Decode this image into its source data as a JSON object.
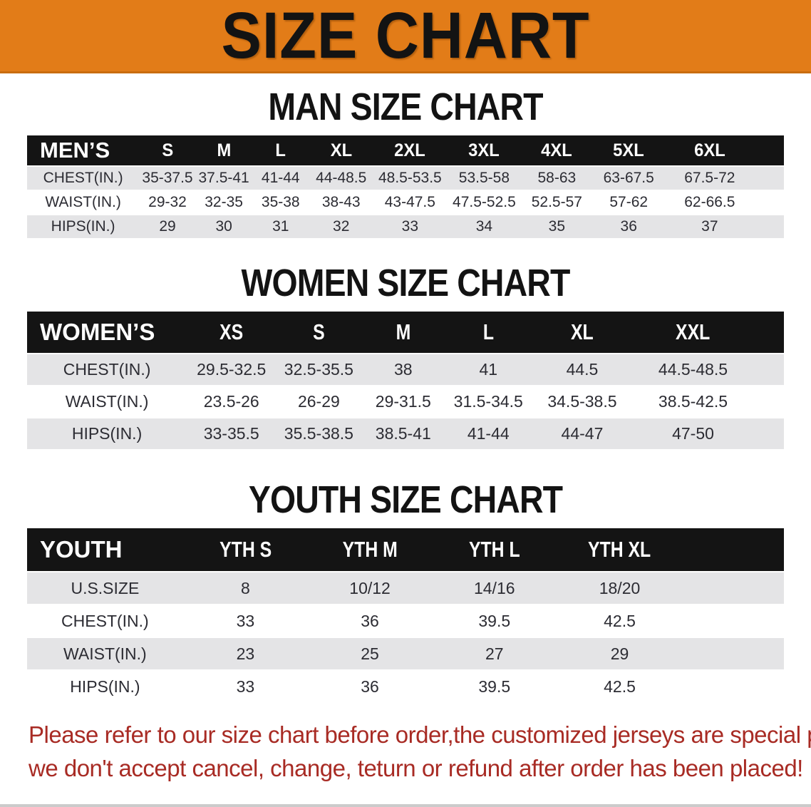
{
  "banner": {
    "title": "SIZE CHART"
  },
  "sections": {
    "men": {
      "title": "MAN SIZE CHART"
    },
    "women": {
      "title": "WOMEN SIZE CHART"
    },
    "youth": {
      "title": "YOUTH SIZE CHART"
    }
  },
  "tables": {
    "men": {
      "label": "MEN’S",
      "columns": [
        "S",
        "M",
        "L",
        "XL",
        "2XL",
        "3XL",
        "4XL",
        "5XL",
        "6XL"
      ],
      "rows": [
        {
          "label": "CHEST(IN.)",
          "values": [
            "35-37.5",
            "37.5-41",
            "41-44",
            "44-48.5",
            "48.5-53.5",
            "53.5-58",
            "58-63",
            "63-67.5",
            "67.5-72"
          ]
        },
        {
          "label": "WAIST(IN.)",
          "values": [
            "29-32",
            "32-35",
            "35-38",
            "38-43",
            "43-47.5",
            "47.5-52.5",
            "52.5-57",
            "57-62",
            "62-66.5"
          ]
        },
        {
          "label": "HIPS(IN.)",
          "values": [
            "29",
            "30",
            "31",
            "32",
            "33",
            "34",
            "35",
            "36",
            "37"
          ]
        }
      ]
    },
    "women": {
      "label": "WOMEN’S",
      "columns": [
        "XS",
        "S",
        "M",
        "L",
        "XL",
        "XXL"
      ],
      "rows": [
        {
          "label": "CHEST(IN.)",
          "values": [
            "29.5-32.5",
            "32.5-35.5",
            "38",
            "41",
            "44.5",
            "44.5-48.5"
          ]
        },
        {
          "label": "WAIST(IN.)",
          "values": [
            "23.5-26",
            "26-29",
            "29-31.5",
            "31.5-34.5",
            "34.5-38.5",
            "38.5-42.5"
          ]
        },
        {
          "label": "HIPS(IN.)",
          "values": [
            "33-35.5",
            "35.5-38.5",
            "38.5-41",
            "41-44",
            "44-47",
            "47-50"
          ]
        }
      ]
    },
    "youth": {
      "label": "YOUTH",
      "columns": [
        "YTH S",
        "YTH M",
        "YTH L",
        "YTH XL"
      ],
      "rows": [
        {
          "label": "U.S.SIZE",
          "values": [
            "8",
            "10/12",
            "14/16",
            "18/20"
          ]
        },
        {
          "label": "CHEST(IN.)",
          "values": [
            "33",
            "36",
            "39.5",
            "42.5"
          ]
        },
        {
          "label": "WAIST(IN.)",
          "values": [
            "23",
            "25",
            "27",
            "29"
          ]
        },
        {
          "label": "HIPS(IN.)",
          "values": [
            "33",
            "36",
            "39.5",
            "42.5"
          ]
        }
      ]
    }
  },
  "note": {
    "line1": "Please refer to our size chart before order,the customized jerseys are special products,",
    "line2": "we don't accept cancel, change, teturn or refund after order has been placed!"
  },
  "colors": {
    "accent_orange": "#E27C18",
    "band_black": "#141414",
    "stripe_gray": "#E4E4E6",
    "note_red": "#A82B24"
  }
}
